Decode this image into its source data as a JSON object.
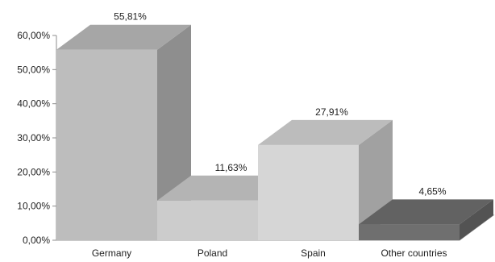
{
  "chart_data": {
    "type": "bar",
    "style": "3d-column",
    "categories": [
      "Germany",
      "Poland",
      "Spain",
      "Other countries"
    ],
    "values": [
      55.81,
      11.63,
      27.91,
      4.65
    ],
    "data_labels": [
      "55,81%",
      "11,63%",
      "27,91%",
      "4,65%"
    ],
    "y_ticks": [
      "0,00%",
      "10,00%",
      "20,00%",
      "30,00%",
      "40,00%",
      "50,00%",
      "60,00%"
    ],
    "ylim": [
      0,
      60
    ],
    "title": "",
    "xlabel": "",
    "ylabel": "",
    "grid": false,
    "legend": "none",
    "colors": [
      "#bdbdbd",
      "#cccccc",
      "#d6d6d6",
      "#6f6f6f"
    ]
  }
}
